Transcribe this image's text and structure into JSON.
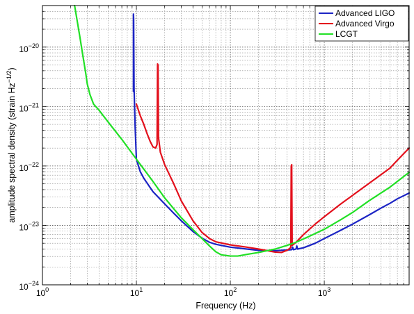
{
  "chart_data": {
    "type": "line",
    "title": "",
    "xlabel": "Frequency (Hz)",
    "ylabel": "amplitude spectral density (strain Hz",
    "ylabel_exponent": "−1/2",
    "ylabel_close": ")",
    "x_scale": "log",
    "y_scale": "log",
    "xlim": [
      1,
      8000
    ],
    "ylim": [
      1e-24,
      5e-20
    ],
    "grid": true,
    "legend_position": "top-right",
    "x_ticks": [
      {
        "value": 1,
        "base": "10",
        "exp": "0"
      },
      {
        "value": 10,
        "base": "10",
        "exp": "1"
      },
      {
        "value": 100,
        "base": "10",
        "exp": "2"
      },
      {
        "value": 1000,
        "base": "10",
        "exp": "3"
      }
    ],
    "y_ticks": [
      {
        "value": 1e-24,
        "base": "10",
        "exp": "−24"
      },
      {
        "value": 1e-23,
        "base": "10",
        "exp": "−23"
      },
      {
        "value": 1e-22,
        "base": "10",
        "exp": "−22"
      },
      {
        "value": 1e-21,
        "base": "10",
        "exp": "−21"
      },
      {
        "value": 1e-20,
        "base": "10",
        "exp": "−20"
      }
    ],
    "series": [
      {
        "name": "Advanced LIGO",
        "color": "#1c24c4",
        "points": [
          [
            9.3,
            1.8e-21
          ],
          [
            9.3,
            3.6e-20
          ],
          [
            9.35,
            3e-20
          ],
          [
            9.45,
            2e-21
          ],
          [
            9.7,
            4.5e-22
          ],
          [
            10,
            1.3e-22
          ],
          [
            11,
            8e-23
          ],
          [
            12,
            6.2e-23
          ],
          [
            15,
            3.7e-23
          ],
          [
            20,
            2.3e-23
          ],
          [
            25,
            1.6e-23
          ],
          [
            30,
            1.2e-23
          ],
          [
            40,
            7.9e-24
          ],
          [
            50,
            6.1e-24
          ],
          [
            60,
            5.2e-24
          ],
          [
            70,
            4.8e-24
          ],
          [
            100,
            4.3e-24
          ],
          [
            150,
            4e-24
          ],
          [
            200,
            3.8e-24
          ],
          [
            300,
            3.75e-24
          ],
          [
            400,
            3.85e-24
          ],
          [
            450,
            3.9e-24
          ],
          [
            460,
            4.3e-24
          ],
          [
            470,
            3.9e-24
          ],
          [
            500,
            4e-24
          ],
          [
            510,
            4.5e-24
          ],
          [
            520,
            4e-24
          ],
          [
            600,
            4.2e-24
          ],
          [
            800,
            5e-24
          ],
          [
            1000,
            6e-24
          ],
          [
            1500,
            8.3e-24
          ],
          [
            2000,
            1.05e-23
          ],
          [
            3000,
            1.5e-23
          ],
          [
            4000,
            1.95e-23
          ],
          [
            5000,
            2.35e-23
          ],
          [
            6000,
            2.8e-23
          ],
          [
            8000,
            3.5e-23
          ]
        ]
      },
      {
        "name": "Advanced Virgo",
        "color": "#e3101c",
        "points": [
          [
            10,
            1.1e-21
          ],
          [
            11,
            7e-22
          ],
          [
            12,
            5e-22
          ],
          [
            13,
            3.5e-22
          ],
          [
            14,
            2.6e-22
          ],
          [
            15,
            2.1e-22
          ],
          [
            16,
            2e-22
          ],
          [
            16.6,
            2.3e-22
          ],
          [
            16.8,
            5.2e-21
          ],
          [
            17.0,
            5e-21
          ],
          [
            17.2,
            3e-22
          ],
          [
            18,
            1.7e-22
          ],
          [
            20,
            1.05e-22
          ],
          [
            25,
            5e-23
          ],
          [
            30,
            2.6e-23
          ],
          [
            40,
            1.2e-23
          ],
          [
            50,
            7.6e-24
          ],
          [
            60,
            6e-24
          ],
          [
            70,
            5.3e-24
          ],
          [
            100,
            4.7e-24
          ],
          [
            150,
            4.3e-24
          ],
          [
            200,
            4e-24
          ],
          [
            300,
            3.55e-24
          ],
          [
            350,
            3.5e-24
          ],
          [
            400,
            3.8e-24
          ],
          [
            430,
            4.1e-24
          ],
          [
            440,
            4.3e-24
          ],
          [
            445,
            1e-22
          ],
          [
            450,
            1.05e-22
          ],
          [
            455,
            4.6e-24
          ],
          [
            500,
            5.2e-24
          ],
          [
            600,
            7e-24
          ],
          [
            800,
            1.05e-23
          ],
          [
            1000,
            1.4e-23
          ],
          [
            1500,
            2.3e-23
          ],
          [
            2000,
            3.2e-23
          ],
          [
            3000,
            5.1e-23
          ],
          [
            5000,
            9.2e-23
          ],
          [
            6000,
            1.25e-22
          ],
          [
            8000,
            2e-22
          ]
        ]
      },
      {
        "name": "LCGT",
        "color": "#21e025",
        "points": [
          [
            2.2,
            5e-20
          ],
          [
            2.5,
            1.5e-20
          ],
          [
            2.7,
            7e-21
          ],
          [
            2.9,
            3.5e-21
          ],
          [
            3.0,
            2.4e-21
          ],
          [
            3.2,
            1.6e-21
          ],
          [
            3.5,
            1.1e-21
          ],
          [
            4,
            8.7e-22
          ],
          [
            5,
            5.5e-22
          ],
          [
            7,
            2.8e-22
          ],
          [
            10,
            1.3e-22
          ],
          [
            15,
            5.5e-23
          ],
          [
            20,
            2.9e-23
          ],
          [
            30,
            1.35e-23
          ],
          [
            40,
            8.5e-24
          ],
          [
            50,
            6e-24
          ],
          [
            60,
            4.5e-24
          ],
          [
            70,
            3.6e-24
          ],
          [
            80,
            3.2e-24
          ],
          [
            100,
            3.05e-24
          ],
          [
            120,
            3.05e-24
          ],
          [
            150,
            3.25e-24
          ],
          [
            200,
            3.5e-24
          ],
          [
            300,
            4e-24
          ],
          [
            400,
            4.6e-24
          ],
          [
            500,
            5.2e-24
          ],
          [
            700,
            6.6e-24
          ],
          [
            1000,
            8.6e-24
          ],
          [
            1500,
            1.25e-23
          ],
          [
            2000,
            1.65e-23
          ],
          [
            3000,
            2.6e-23
          ],
          [
            4000,
            3.5e-23
          ],
          [
            5000,
            4.4e-23
          ],
          [
            6000,
            5.5e-23
          ],
          [
            8000,
            7.8e-23
          ]
        ]
      }
    ]
  }
}
